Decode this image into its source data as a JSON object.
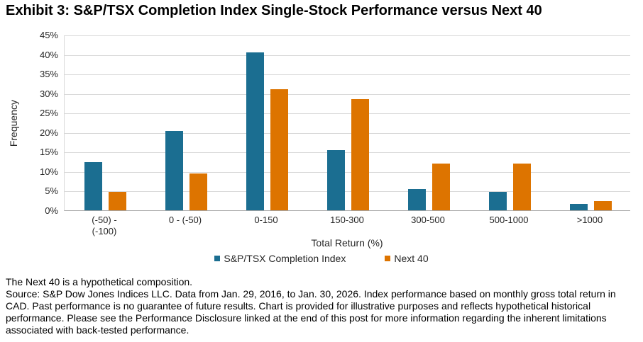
{
  "title": "Exhibit 3: S&P/TSX Completion Index Single-Stock Performance versus Next 40",
  "chart_data": {
    "type": "bar",
    "title": "Exhibit 3: S&P/TSX Completion Index Single-Stock Performance versus Next 40",
    "categories": [
      "(-50) -\n(-100)",
      "0 - (-50)",
      "0-150",
      "150-300",
      "300-500",
      "500-1000",
      ">1000"
    ],
    "series": [
      {
        "name": "S&P/TSX Completion Index",
        "color": "#1B6E91",
        "values": [
          12.3,
          20.3,
          40.4,
          15.5,
          5.4,
          4.7,
          1.6
        ]
      },
      {
        "name": "Next 40",
        "color": "#DD7400",
        "values": [
          4.8,
          9.5,
          31.0,
          28.5,
          11.9,
          11.9,
          2.3
        ]
      }
    ],
    "xlabel": "Total Return (%)",
    "ylabel": "Frequency",
    "ylim": [
      0,
      45
    ],
    "ytick_step": 5,
    "ytick_labels": [
      "0%",
      "5%",
      "10%",
      "15%",
      "20%",
      "25%",
      "30%",
      "35%",
      "40%",
      "45%"
    ],
    "grid": true,
    "legend_position": "bottom",
    "colors": {
      "gridline": "#d9d9d9",
      "axis": "#a6a6a6",
      "text": "#262626"
    }
  },
  "footnotes": {
    "note": "The Next 40 is a hypothetical composition.",
    "source": "Source: S&P Dow Jones Indices LLC. Data from Jan. 29, 2016, to Jan. 30, 2026. Index performance based on monthly gross total return in CAD. Past performance is no guarantee of future results. Chart is provided for illustrative purposes and reflects hypothetical historical performance. Please see the Performance Disclosure linked at the end of this post for more information regarding the inherent limitations associated with back-tested performance."
  }
}
